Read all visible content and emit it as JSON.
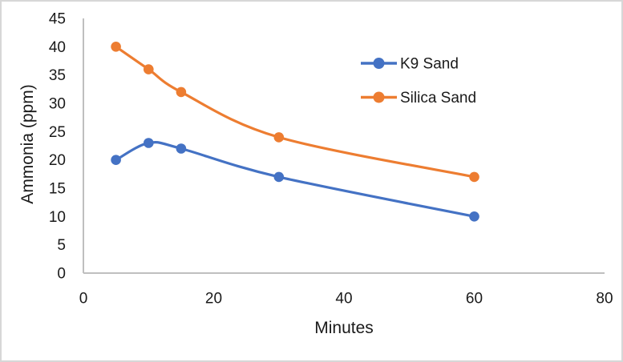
{
  "chart_data": {
    "type": "line",
    "title": "",
    "xlabel": "Minutes",
    "ylabel": "Ammonia (ppm)",
    "x": [
      5,
      10,
      15,
      30,
      60
    ],
    "series": [
      {
        "name": "K9 Sand",
        "color": "#4472C4",
        "values": [
          20,
          23,
          22,
          17,
          10
        ]
      },
      {
        "name": "Silica Sand",
        "color": "#ED7D31",
        "values": [
          40,
          36,
          32,
          24,
          17
        ]
      }
    ],
    "xlim": [
      0,
      80
    ],
    "ylim": [
      0,
      45
    ],
    "xticks": [
      0,
      20,
      40,
      60,
      80
    ],
    "yticks": [
      0,
      5,
      10,
      15,
      20,
      25,
      30,
      35,
      40,
      45
    ],
    "grid": false,
    "line_style": "smooth",
    "marker": "circle",
    "legend_position": "inside-upper-right",
    "axis_color": "#bfbfbf",
    "text_color": "#1a1a1a",
    "frame_border_color": "#d7d7d7"
  }
}
